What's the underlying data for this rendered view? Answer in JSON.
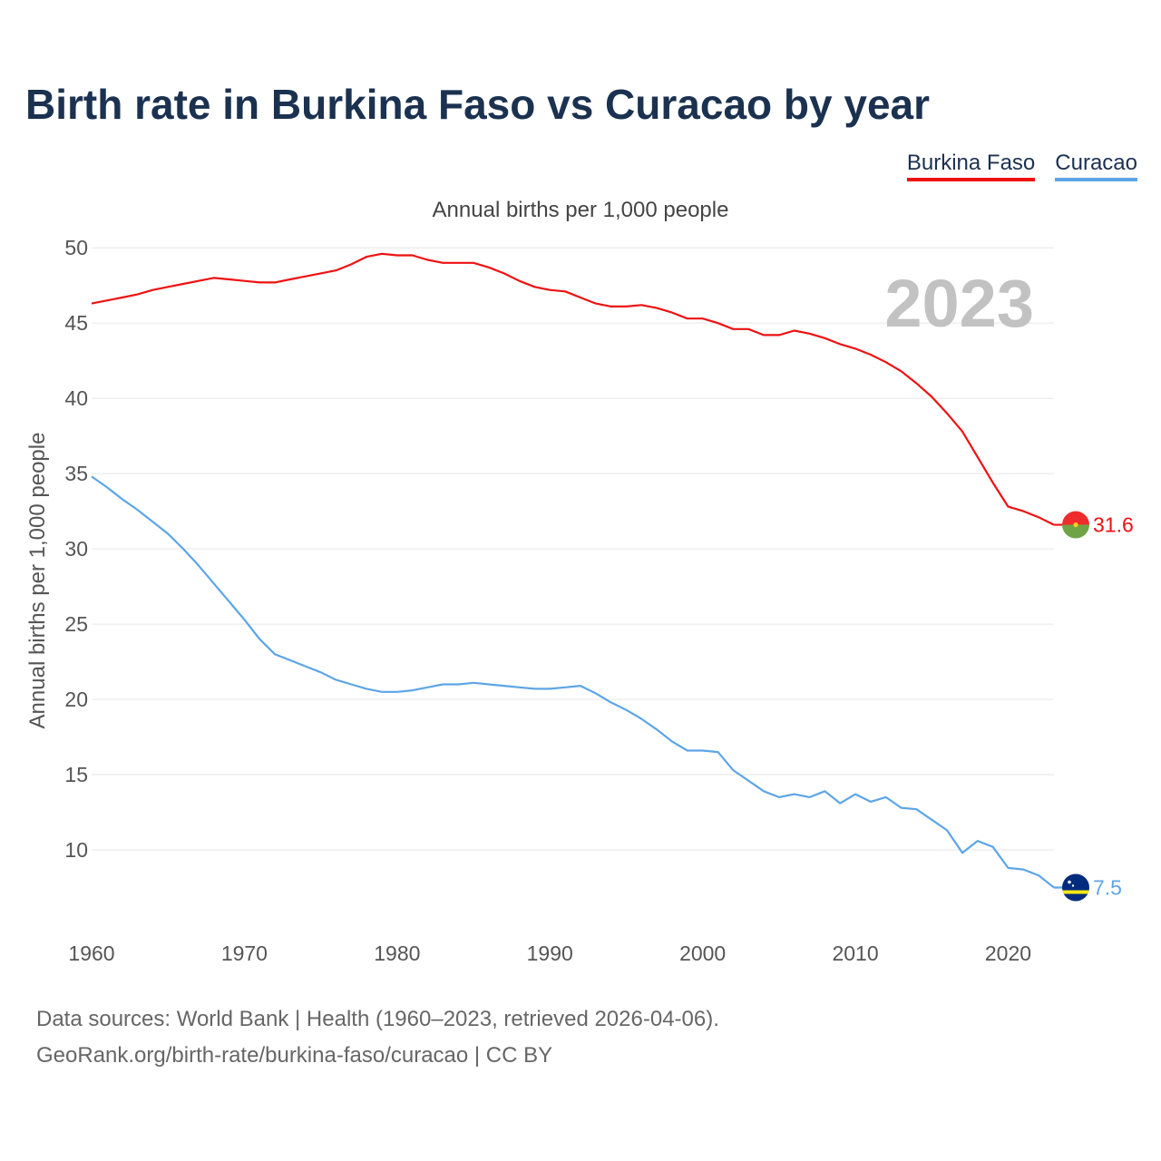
{
  "chart_data": {
    "type": "line",
    "title": "Birth rate in Burkina Faso vs Curacao by year",
    "subtitle": "Annual births per 1,000 people",
    "ylabel": "Annual births per 1,000 people",
    "xlabel": "",
    "ylim": [
      5,
      52
    ],
    "xlim": [
      1960,
      2023
    ],
    "yticks": [
      10,
      15,
      20,
      25,
      30,
      35,
      40,
      45,
      50
    ],
    "xticks": [
      1960,
      1970,
      1980,
      1990,
      2000,
      2010,
      2020
    ],
    "grid": true,
    "legend": "top-right",
    "year_label": "2023",
    "x": [
      1960,
      1961,
      1962,
      1963,
      1964,
      1965,
      1966,
      1967,
      1968,
      1969,
      1970,
      1971,
      1972,
      1973,
      1974,
      1975,
      1976,
      1977,
      1978,
      1979,
      1980,
      1981,
      1982,
      1983,
      1984,
      1985,
      1986,
      1987,
      1988,
      1989,
      1990,
      1991,
      1992,
      1993,
      1994,
      1995,
      1996,
      1997,
      1998,
      1999,
      2000,
      2001,
      2002,
      2003,
      2004,
      2005,
      2006,
      2007,
      2008,
      2009,
      2010,
      2011,
      2012,
      2013,
      2014,
      2015,
      2016,
      2017,
      2018,
      2019,
      2020,
      2021,
      2022,
      2023
    ],
    "series": [
      {
        "name": "Burkina Faso",
        "color": "#ee1111",
        "end_label": "31.6",
        "flag": "burkina-faso-flag-icon",
        "values": [
          46.3,
          46.5,
          46.7,
          46.9,
          47.2,
          47.4,
          47.6,
          47.8,
          48.0,
          47.9,
          47.8,
          47.7,
          47.7,
          47.9,
          48.1,
          48.3,
          48.5,
          48.9,
          49.4,
          49.6,
          49.5,
          49.5,
          49.2,
          49.0,
          49.0,
          49.0,
          48.7,
          48.3,
          47.8,
          47.4,
          47.2,
          47.1,
          46.7,
          46.3,
          46.1,
          46.1,
          46.2,
          46.0,
          45.7,
          45.3,
          45.3,
          45.0,
          44.6,
          44.6,
          44.2,
          44.2,
          44.5,
          44.3,
          44.0,
          43.6,
          43.3,
          42.9,
          42.4,
          41.8,
          41.0,
          40.1,
          39.0,
          37.8,
          36.1,
          34.4,
          32.8,
          32.5,
          32.1,
          31.6
        ]
      },
      {
        "name": "Curacao",
        "color": "#5da5e8",
        "end_label": "7.5",
        "flag": "curacao-flag-icon",
        "values": [
          34.8,
          34.1,
          33.3,
          32.6,
          31.8,
          31.0,
          30.0,
          28.9,
          27.7,
          26.5,
          25.3,
          24.0,
          23.0,
          22.6,
          22.2,
          21.8,
          21.3,
          21.0,
          20.7,
          20.5,
          20.5,
          20.6,
          20.8,
          21.0,
          21.0,
          21.1,
          21.0,
          20.9,
          20.8,
          20.7,
          20.7,
          20.8,
          20.9,
          20.4,
          19.8,
          19.3,
          18.7,
          18.0,
          17.2,
          16.6,
          16.6,
          16.5,
          15.3,
          14.6,
          13.9,
          13.5,
          13.7,
          13.5,
          13.9,
          13.1,
          13.7,
          13.2,
          13.5,
          12.8,
          12.7,
          12.0,
          11.3,
          9.8,
          10.6,
          10.2,
          8.8,
          8.7,
          8.3,
          7.5
        ]
      }
    ]
  },
  "sources": {
    "line1": "Data sources: World Bank | Health (1960–2023, retrieved 2026-04-06).",
    "line2": "GeoRank.org/birth-rate/burkina-faso/curacao | CC BY"
  }
}
